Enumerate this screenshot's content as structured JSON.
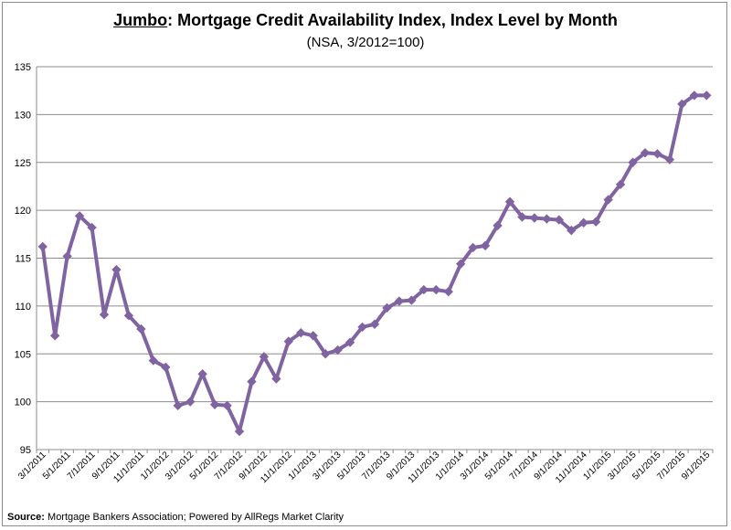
{
  "chart_data": {
    "type": "line",
    "title_prefix": "Jumbo",
    "title_rest": ": Mortgage Credit Availability Index, Index Level by Month",
    "subtitle": "(NSA, 3/2012=100)",
    "source_label": "Source:",
    "source_text": " Mortgage Bankers Association; Powered by AllRegs Market Clarity",
    "ylim": [
      95,
      135
    ],
    "yticks": [
      95,
      100,
      105,
      110,
      115,
      120,
      125,
      130,
      135
    ],
    "grid": true,
    "line_color": "#8064a2",
    "x_tick_labels": [
      "3/1/2011",
      "5/1/2011",
      "7/1/2011",
      "9/1/2011",
      "11/1/2011",
      "1/1/2012",
      "3/1/2012",
      "5/1/2012",
      "7/1/2012",
      "9/1/2012",
      "11/1/2012",
      "1/1/2013",
      "3/1/2013",
      "5/1/2013",
      "7/1/2013",
      "9/1/2013",
      "11/1/2013",
      "1/1/2014",
      "3/1/2014",
      "5/1/2014",
      "7/1/2014",
      "9/1/2014",
      "11/1/2014",
      "1/1/2015",
      "3/1/2015",
      "5/1/2015",
      "7/1/2015",
      "9/1/2015"
    ],
    "series": [
      {
        "values": [
          116.2,
          106.9,
          115.2,
          119.4,
          118.2,
          109.1,
          113.8,
          109.0,
          107.6,
          104.3,
          103.6,
          99.6,
          100.0,
          102.9,
          99.7,
          99.6,
          96.9,
          102.1,
          104.7,
          102.4,
          106.3,
          107.2,
          106.9,
          105.0,
          105.4,
          106.2,
          107.8,
          108.1,
          109.8,
          110.5,
          110.6,
          111.7,
          111.7,
          111.5,
          114.4,
          116.1,
          116.3,
          118.4,
          120.9,
          119.3,
          119.2,
          119.1,
          119.0,
          117.9,
          118.7,
          118.8,
          121.1,
          122.7,
          125.0,
          126.0,
          125.9,
          125.3,
          131.1,
          132.0,
          132.0
        ]
      }
    ]
  }
}
